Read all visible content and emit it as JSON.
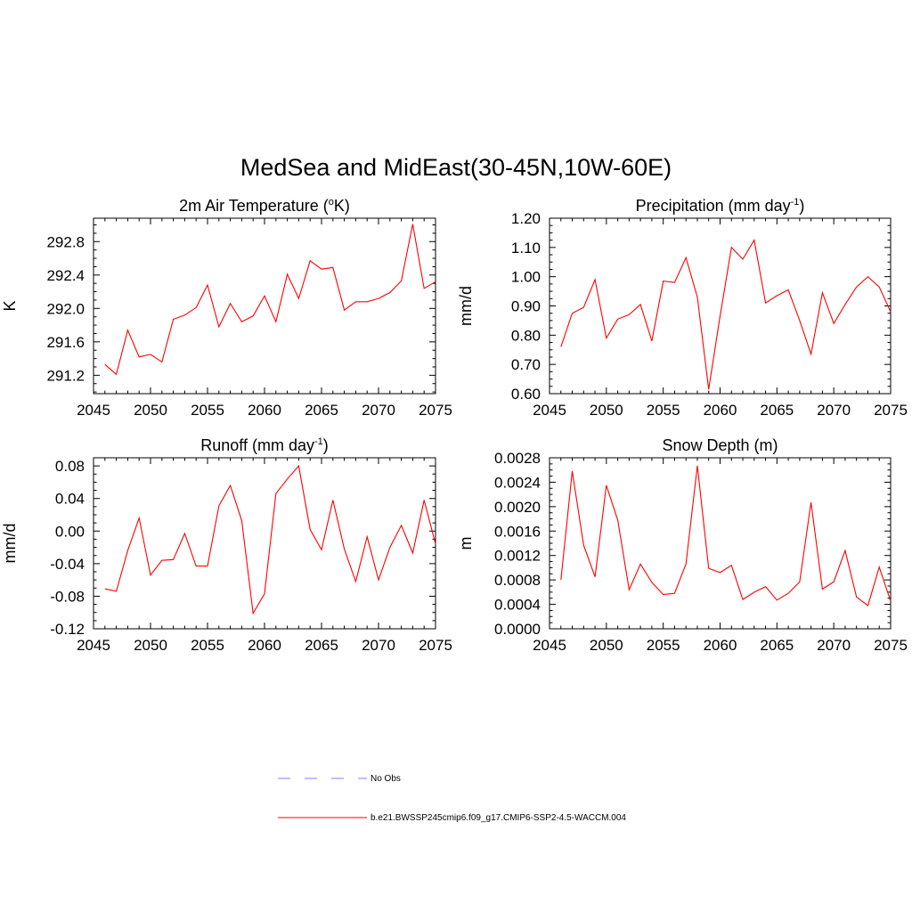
{
  "figure_title": "MedSea and MidEast(30-45N,10W-60E)",
  "colors": {
    "series": "#ff0000",
    "obs": "#9999ff",
    "axis": "#000000"
  },
  "legend": [
    {
      "label": "No Obs",
      "style": "dashed",
      "color": "#9999ff"
    },
    {
      "label": "b.e21.BWSSP245cmip6.f09_g17.CMIP6-SSP2-4.5-WACCM.004",
      "style": "solid",
      "color": "#ff0000"
    }
  ],
  "chart_data": [
    {
      "type": "line",
      "title": "2m Air Temperature (°K)",
      "title_parts": {
        "before": "2m Air Temperature (",
        "sup": "o",
        "after": "K)"
      },
      "ylabel": "K",
      "xlim": [
        2045,
        2075
      ],
      "ylim": [
        290.98,
        293.08
      ],
      "xticks": [
        "2045",
        "2050",
        "2055",
        "2060",
        "2065",
        "2070",
        "2075"
      ],
      "yticks": [
        "291.2",
        "291.6",
        "292.0",
        "292.4",
        "292.8"
      ],
      "grid": false,
      "x": [
        2046,
        2047,
        2048,
        2049,
        2050,
        2051,
        2052,
        2053,
        2054,
        2055,
        2056,
        2057,
        2058,
        2059,
        2060,
        2061,
        2062,
        2063,
        2064,
        2065,
        2066,
        2067,
        2068,
        2069,
        2070,
        2071,
        2072,
        2073,
        2074,
        2075
      ],
      "series": [
        {
          "values": [
            291.33,
            291.21,
            291.74,
            291.42,
            291.45,
            291.36,
            291.87,
            291.92,
            292.01,
            292.28,
            291.78,
            292.06,
            291.84,
            291.91,
            292.15,
            291.84,
            292.41,
            292.12,
            292.57,
            292.47,
            292.49,
            291.98,
            292.08,
            292.08,
            292.12,
            292.19,
            292.33,
            293.01,
            292.24,
            292.32
          ]
        }
      ]
    },
    {
      "type": "line",
      "title": "Precipitation (mm day-1)",
      "title_parts": {
        "before": "Precipitation (mm day",
        "sup": "-1",
        "after": ")"
      },
      "ylabel": "mm/d",
      "xlim": [
        2045,
        2075
      ],
      "ylim": [
        0.6,
        1.2
      ],
      "xticks": [
        "2045",
        "2050",
        "2055",
        "2060",
        "2065",
        "2070",
        "2075"
      ],
      "yticks": [
        "0.60",
        "0.70",
        "0.80",
        "0.90",
        "1.00",
        "1.10",
        "1.20"
      ],
      "grid": false,
      "x": [
        2046,
        2047,
        2048,
        2049,
        2050,
        2051,
        2052,
        2053,
        2054,
        2055,
        2056,
        2057,
        2058,
        2059,
        2060,
        2061,
        2062,
        2063,
        2064,
        2065,
        2066,
        2067,
        2068,
        2069,
        2070,
        2071,
        2072,
        2073,
        2074,
        2075
      ],
      "series": [
        {
          "values": [
            0.76,
            0.875,
            0.895,
            0.99,
            0.79,
            0.855,
            0.87,
            0.905,
            0.78,
            0.985,
            0.98,
            1.065,
            0.93,
            0.615,
            0.865,
            1.1,
            1.06,
            1.125,
            0.91,
            0.935,
            0.955,
            0.85,
            0.735,
            0.945,
            0.84,
            0.905,
            0.965,
            1.0,
            0.965,
            0.88
          ]
        }
      ]
    },
    {
      "type": "line",
      "title": "Runoff (mm day-1)",
      "title_parts": {
        "before": "Runoff (mm day",
        "sup": "-1",
        "after": ")"
      },
      "ylabel": "mm/d",
      "xlim": [
        2045,
        2075
      ],
      "ylim": [
        -0.12,
        0.09
      ],
      "xticks": [
        "2045",
        "2050",
        "2055",
        "2060",
        "2065",
        "2070",
        "2075"
      ],
      "yticks": [
        "-0.12",
        "-0.08",
        "-0.04",
        "0.00",
        "0.04",
        "0.08"
      ],
      "grid": false,
      "x": [
        2046,
        2047,
        2048,
        2049,
        2050,
        2051,
        2052,
        2053,
        2054,
        2055,
        2056,
        2057,
        2058,
        2059,
        2060,
        2061,
        2062,
        2063,
        2064,
        2065,
        2066,
        2067,
        2068,
        2069,
        2070,
        2071,
        2072,
        2073,
        2074,
        2075
      ],
      "series": [
        {
          "values": [
            -0.071,
            -0.074,
            -0.024,
            0.016,
            -0.054,
            -0.036,
            -0.035,
            -0.003,
            -0.043,
            -0.043,
            0.031,
            0.056,
            0.013,
            -0.101,
            -0.077,
            0.046,
            0.064,
            0.08,
            0.002,
            -0.023,
            0.038,
            -0.022,
            -0.062,
            -0.007,
            -0.06,
            -0.02,
            0.007,
            -0.027,
            0.038,
            -0.016
          ]
        }
      ]
    },
    {
      "type": "line",
      "title": "Snow Depth (m)",
      "title_parts": {
        "before": "Snow Depth (m)",
        "sup": "",
        "after": ""
      },
      "ylabel": "m",
      "xlim": [
        2045,
        2075
      ],
      "ylim": [
        0.0,
        0.0028
      ],
      "xticks": [
        "2045",
        "2050",
        "2055",
        "2060",
        "2065",
        "2070",
        "2075"
      ],
      "yticks": [
        "0.0000",
        "0.0004",
        "0.0008",
        "0.0012",
        "0.0016",
        "0.0020",
        "0.0024",
        "0.0028"
      ],
      "grid": false,
      "x": [
        2046,
        2047,
        2048,
        2049,
        2050,
        2051,
        2052,
        2053,
        2054,
        2055,
        2056,
        2057,
        2058,
        2059,
        2060,
        2061,
        2062,
        2063,
        2064,
        2065,
        2066,
        2067,
        2068,
        2069,
        2070,
        2071,
        2072,
        2073,
        2074,
        2075
      ],
      "series": [
        {
          "values": [
            0.0008,
            0.00258,
            0.00137,
            0.00085,
            0.00235,
            0.00178,
            0.00064,
            0.00106,
            0.00076,
            0.00056,
            0.00058,
            0.00106,
            0.00267,
            0.00099,
            0.00092,
            0.00104,
            0.00048,
            0.0006,
            0.00069,
            0.00047,
            0.00058,
            0.00077,
            0.00207,
            0.00065,
            0.00077,
            0.00128,
            0.00052,
            0.00038,
            0.00101,
            0.00045
          ]
        }
      ]
    }
  ]
}
